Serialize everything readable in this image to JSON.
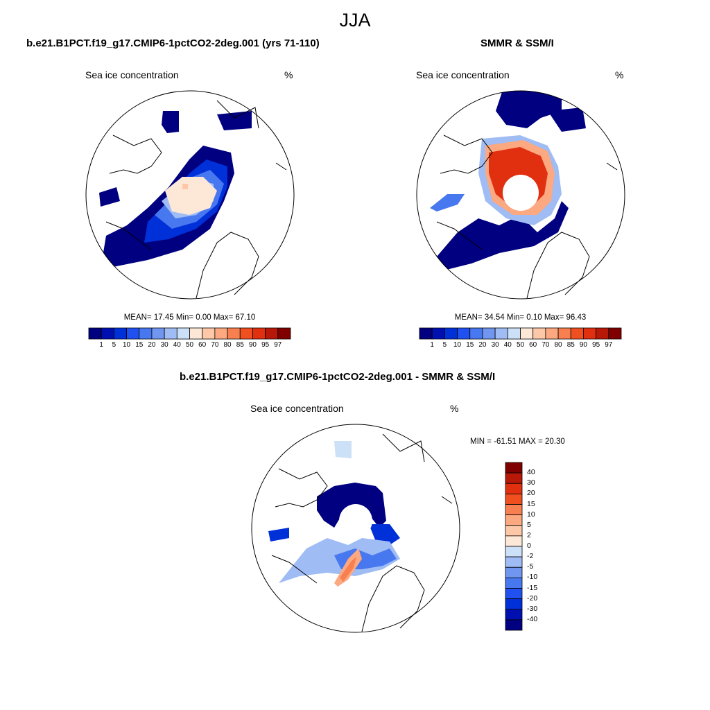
{
  "page_title": "JJA",
  "panels": [
    {
      "title": "b.e21.B1PCT.f19_g17.CMIP6-1pctCO2-2deg.001 (yrs 71-110)",
      "subtitle": "Sea ice concentration",
      "units": "%",
      "stats": "MEAN=  17.45  Min=   0.00  Max=  67.10"
    },
    {
      "title": "SMMR & SSM/I",
      "subtitle": "Sea ice concentration",
      "units": "%",
      "stats": "MEAN=  34.54  Min=   0.10  Max=  96.43"
    },
    {
      "title": "b.e21.B1PCT.f19_g17.CMIP6-1pctCO2-2deg.001 - SMMR & SSM/I",
      "subtitle": "Sea ice concentration",
      "units": "%",
      "stats": "MIN = -61.51 MAX =  20.30"
    }
  ],
  "colorbar_conc": {
    "labels": [
      "1",
      "5",
      "10",
      "15",
      "20",
      "30",
      "40",
      "50",
      "60",
      "70",
      "80",
      "85",
      "90",
      "95",
      "97"
    ],
    "colors": [
      "#000080",
      "#0010b0",
      "#0030d8",
      "#2050f0",
      "#4878f0",
      "#7096f0",
      "#a0bcf4",
      "#cce0f8",
      "#fde8d8",
      "#fcc8a8",
      "#fca880",
      "#f88050",
      "#f05020",
      "#e03010",
      "#b81808",
      "#800000"
    ]
  },
  "colorbar_diff": {
    "labels": [
      "40",
      "30",
      "20",
      "15",
      "10",
      "5",
      "2",
      "0",
      "-2",
      "-5",
      "-10",
      "-15",
      "-20",
      "-30",
      "-40"
    ],
    "colors": [
      "#800000",
      "#b81808",
      "#e03010",
      "#f05020",
      "#f88050",
      "#fca880",
      "#fcc8a8",
      "#fde8d8",
      "#cce0f8",
      "#a0bcf4",
      "#7096f0",
      "#4878f0",
      "#2050f0",
      "#0030d8",
      "#0010b0",
      "#000080"
    ]
  }
}
